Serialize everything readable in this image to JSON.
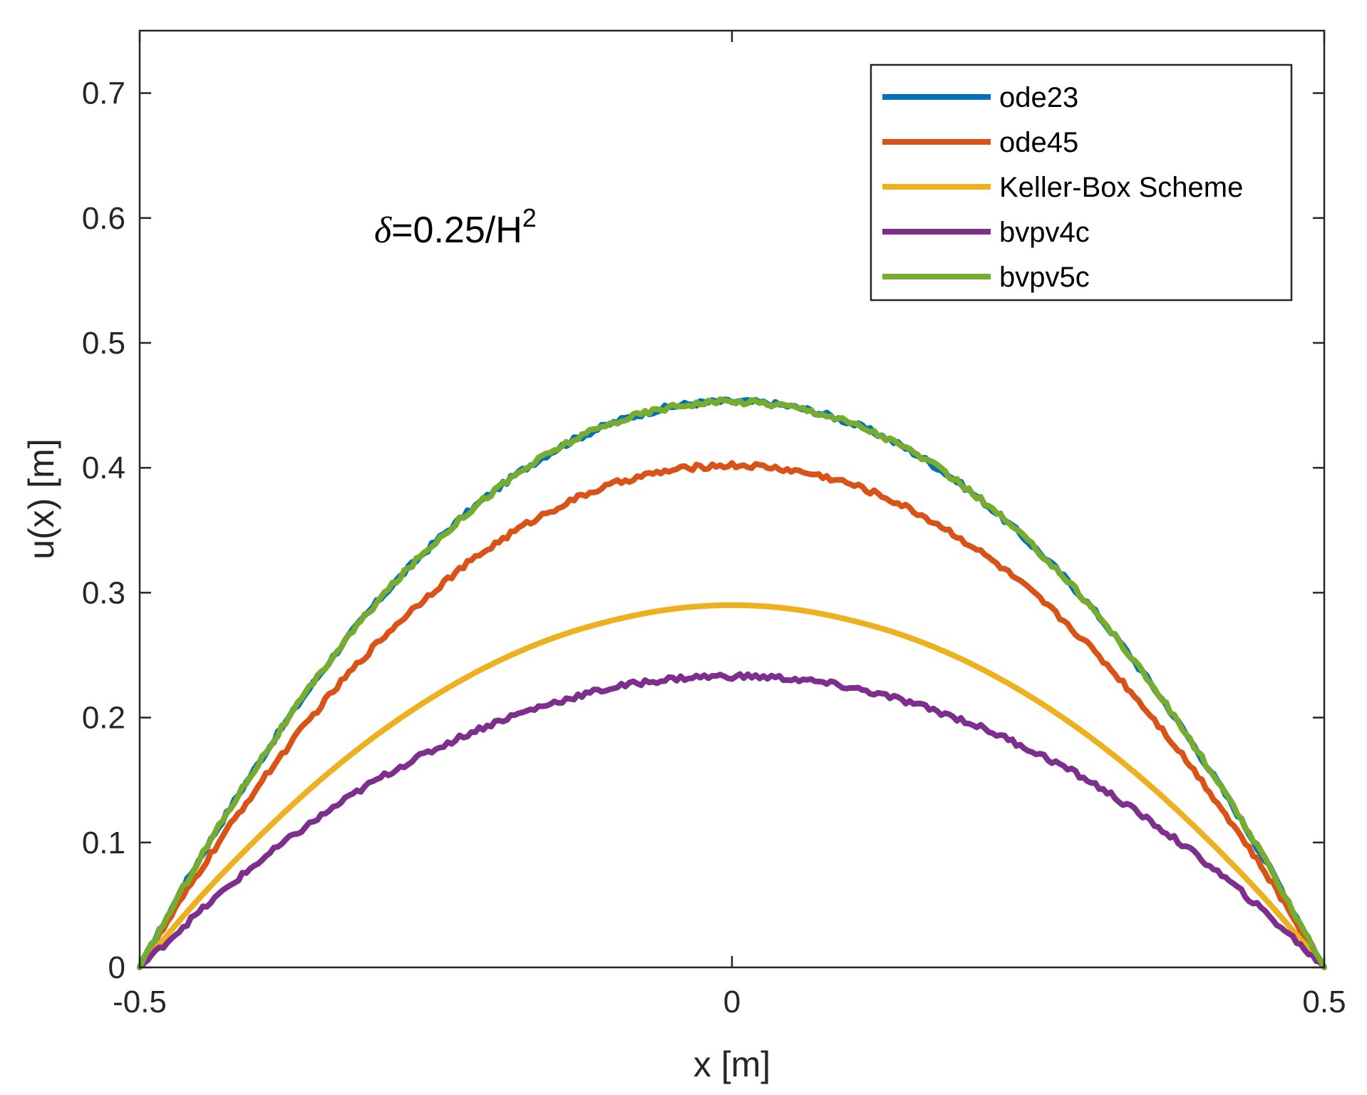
{
  "chart_data": {
    "type": "line",
    "title": "",
    "xlabel": "x [m]",
    "ylabel": "u(x) [m]",
    "xlim": [
      -0.5,
      0.5
    ],
    "ylim": [
      0,
      0.75
    ],
    "xticks": [
      -0.5,
      0,
      0.5
    ],
    "xtick_labels": [
      "-0.5",
      "0",
      "0.5"
    ],
    "yticks": [
      0,
      0.1,
      0.2,
      0.3,
      0.4,
      0.5,
      0.6,
      0.7
    ],
    "ytick_labels": [
      "0",
      "0.1",
      "0.2",
      "0.3",
      "0.4",
      "0.5",
      "0.6",
      "0.7"
    ],
    "grid": false,
    "legend_position": "top-right",
    "annotation": {
      "symbol": "δ",
      "text": "=0.25/H",
      "superscript": "2"
    },
    "x": [
      -0.5,
      -0.45,
      -0.4,
      -0.35,
      -0.3,
      -0.25,
      -0.2,
      -0.15,
      -0.1,
      -0.05,
      0,
      0.05,
      0.1,
      0.15,
      0.2,
      0.25,
      0.3,
      0.35,
      0.4,
      0.45,
      0.5
    ],
    "series": [
      {
        "name": "ode23",
        "color": "#0072BD",
        "noisy": true,
        "values": [
          0,
          0.086,
          0.163,
          0.232,
          0.292,
          0.341,
          0.382,
          0.414,
          0.436,
          0.449,
          0.453,
          0.449,
          0.436,
          0.414,
          0.382,
          0.341,
          0.292,
          0.232,
          0.163,
          0.086,
          0
        ]
      },
      {
        "name": "ode45",
        "color": "#D95319",
        "noisy": true,
        "values": [
          0,
          0.076,
          0.145,
          0.206,
          0.259,
          0.303,
          0.339,
          0.367,
          0.387,
          0.398,
          0.402,
          0.398,
          0.387,
          0.367,
          0.339,
          0.303,
          0.259,
          0.206,
          0.145,
          0.076,
          0
        ]
      },
      {
        "name": "Keller-Box Scheme",
        "color": "#EDB120",
        "noisy": false,
        "values": [
          0,
          0.055,
          0.104,
          0.148,
          0.186,
          0.218,
          0.244,
          0.264,
          0.278,
          0.287,
          0.29,
          0.287,
          0.278,
          0.264,
          0.244,
          0.218,
          0.186,
          0.148,
          0.104,
          0.055,
          0
        ]
      },
      {
        "name": "bvpv4c",
        "color": "#7E2F8E",
        "noisy": true,
        "values": [
          0,
          0.044,
          0.084,
          0.119,
          0.15,
          0.175,
          0.196,
          0.212,
          0.224,
          0.231,
          0.233,
          0.231,
          0.224,
          0.212,
          0.196,
          0.175,
          0.15,
          0.119,
          0.084,
          0.044,
          0
        ]
      },
      {
        "name": "bvpv5c",
        "color": "#77AC30",
        "noisy": true,
        "values": [
          0,
          0.086,
          0.163,
          0.232,
          0.292,
          0.341,
          0.382,
          0.414,
          0.436,
          0.449,
          0.453,
          0.449,
          0.436,
          0.414,
          0.382,
          0.341,
          0.292,
          0.232,
          0.163,
          0.086,
          0
        ]
      }
    ]
  }
}
